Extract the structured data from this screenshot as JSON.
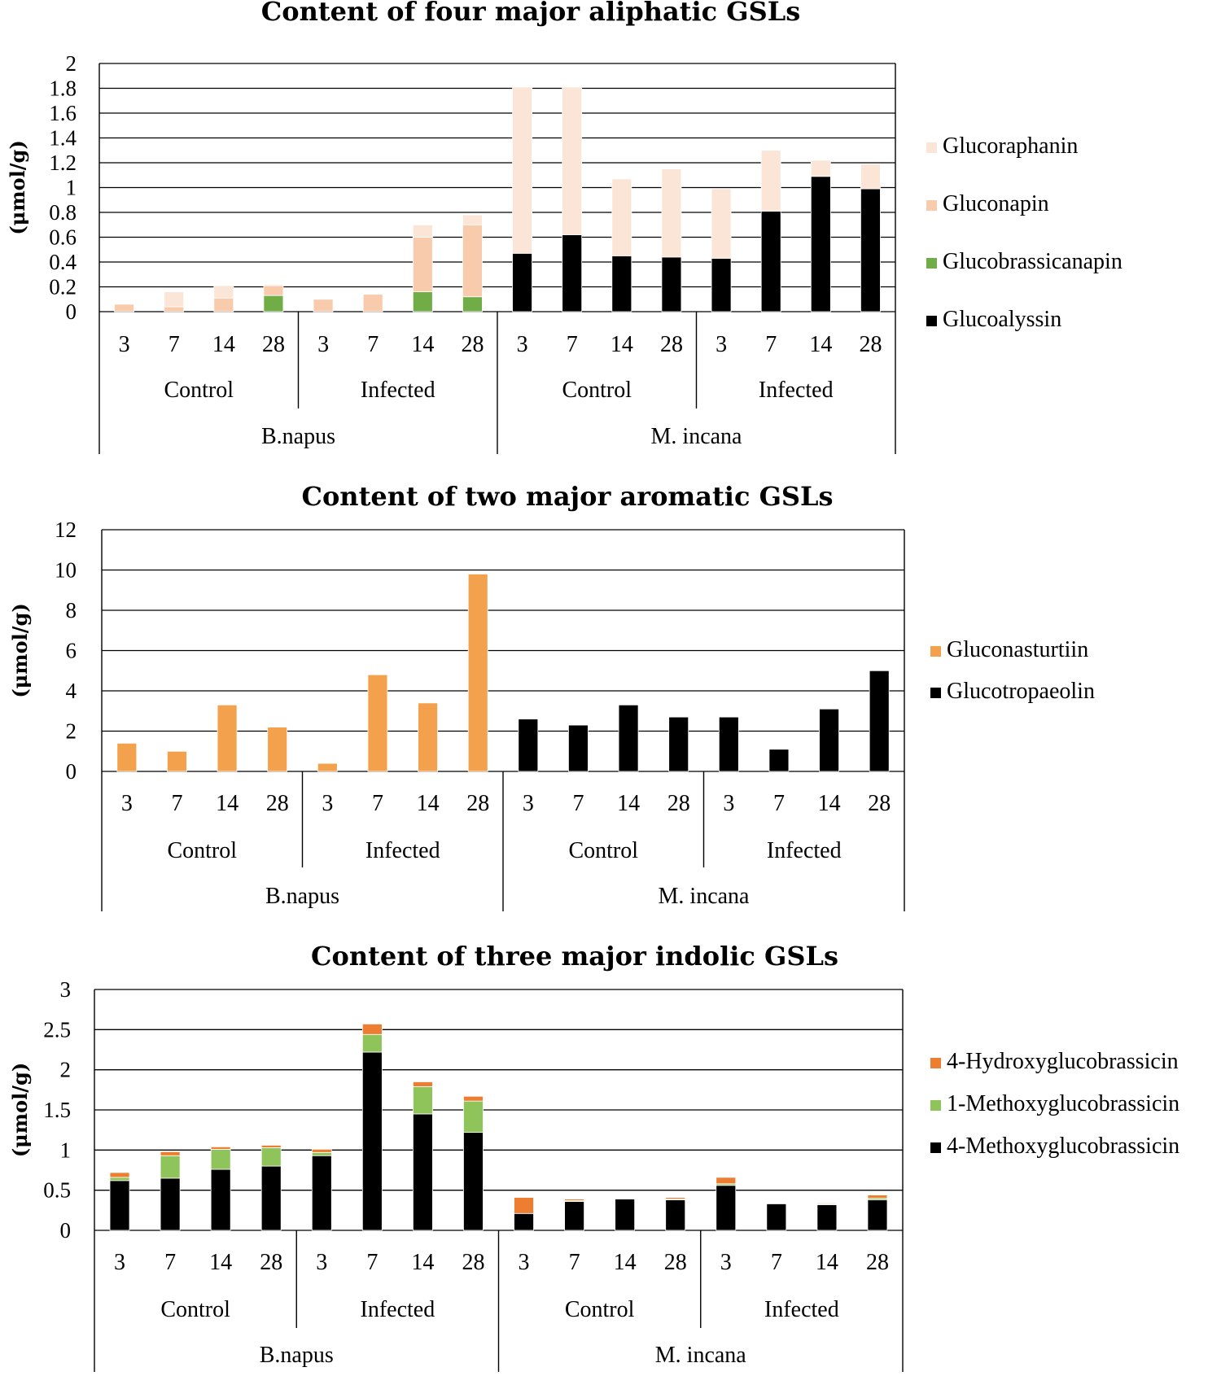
{
  "colors": {
    "Glucoraphanin": "#fbe5d6",
    "Gluconapin": "#f8cbad",
    "Glucobrassicanapin": "#70ad47",
    "Glucoalyssin": "#000000",
    "Gluconasturtiin": "#f4a14e",
    "Glucotropaeolin": "#000000",
    "4-Hydroxyglucobrassicin": "#ed7d31",
    "1-Methoxyglucobrassicin": "#8fc45a",
    "4-Methoxyglucobrassicin": "#000000",
    "grid": "#000000"
  },
  "chart_data": [
    {
      "type": "bar",
      "stacked": true,
      "title": "Content of four major aliphatic GSLs",
      "ylabel": "(μmol/g)",
      "ylim": [
        0,
        2
      ],
      "yticks": [
        "0",
        "0.2",
        "0.4",
        "0.6",
        "0.8",
        "1",
        "1.2",
        "1.4",
        "1.6",
        "1.8",
        "2"
      ],
      "ytick_values": [
        0,
        0.2,
        0.4,
        0.6,
        0.8,
        1,
        1.2,
        1.4,
        1.6,
        1.8,
        2
      ],
      "categories": [
        "3",
        "7",
        "14",
        "28",
        "3",
        "7",
        "14",
        "28",
        "3",
        "7",
        "14",
        "28",
        "3",
        "7",
        "14",
        "28"
      ],
      "treatments": [
        "Control",
        "Infected",
        "Control",
        "Infected"
      ],
      "species": [
        "B.napus",
        "M. incana"
      ],
      "legend": [
        "Glucoraphanin",
        "Gluconapin",
        "Glucobrassicanapin",
        "Glucoalyssin"
      ],
      "series": [
        {
          "name": "Glucoalyssin",
          "values": [
            0,
            0,
            0,
            0,
            0,
            0,
            0,
            0,
            0.47,
            0.62,
            0.45,
            0.44,
            0.43,
            0.81,
            1.09,
            0.99
          ]
        },
        {
          "name": "Glucobrassicanapin",
          "values": [
            0,
            0,
            0,
            0.13,
            0,
            0,
            0.16,
            0.12,
            0,
            0,
            0,
            0,
            0,
            0,
            0,
            0
          ]
        },
        {
          "name": "Gluconapin",
          "values": [
            0.06,
            0.04,
            0.11,
            0.08,
            0.1,
            0.14,
            0.44,
            0.58,
            0,
            0,
            0,
            0,
            0,
            0,
            0,
            0
          ]
        },
        {
          "name": "Glucoraphanin",
          "values": [
            0,
            0.12,
            0.1,
            0.01,
            0,
            0,
            0.1,
            0.08,
            1.34,
            1.19,
            0.62,
            0.71,
            0.56,
            0.49,
            0.13,
            0.2
          ]
        }
      ]
    },
    {
      "type": "bar",
      "stacked": true,
      "title": "Content of two major aromatic GSLs",
      "ylabel": "(μmol/g)",
      "ylim": [
        0,
        12
      ],
      "yticks": [
        "0",
        "2",
        "4",
        "6",
        "8",
        "10",
        "12"
      ],
      "ytick_values": [
        0,
        2,
        4,
        6,
        8,
        10,
        12
      ],
      "categories": [
        "3",
        "7",
        "14",
        "28",
        "3",
        "7",
        "14",
        "28",
        "3",
        "7",
        "14",
        "28",
        "3",
        "7",
        "14",
        "28"
      ],
      "treatments": [
        "Control",
        "Infected",
        "Control",
        "Infected"
      ],
      "species": [
        "B.napus",
        "M. incana"
      ],
      "legend": [
        "Gluconasturtiin",
        "Glucotropaeolin"
      ],
      "series": [
        {
          "name": "Glucotropaeolin",
          "values": [
            0,
            0,
            0,
            0,
            0,
            0,
            0,
            0,
            2.6,
            2.3,
            3.3,
            2.7,
            2.7,
            1.1,
            3.1,
            5.0
          ]
        },
        {
          "name": "Gluconasturtiin",
          "values": [
            1.4,
            1.0,
            3.3,
            2.2,
            0.4,
            4.8,
            3.4,
            9.8,
            0,
            0,
            0,
            0,
            0,
            0,
            0,
            0
          ]
        }
      ]
    },
    {
      "type": "bar",
      "stacked": true,
      "title": "Content of three major indolic GSLs",
      "ylabel": "(μmol/g)",
      "ylim": [
        0,
        3
      ],
      "yticks": [
        "0",
        "0.5",
        "1",
        "1.5",
        "2",
        "2.5",
        "3"
      ],
      "ytick_values": [
        0,
        0.5,
        1,
        1.5,
        2,
        2.5,
        3
      ],
      "categories": [
        "3",
        "7",
        "14",
        "28",
        "3",
        "7",
        "14",
        "28",
        "3",
        "7",
        "14",
        "28",
        "3",
        "7",
        "14",
        "28"
      ],
      "treatments": [
        "Control",
        "Infected",
        "Control",
        "Infected"
      ],
      "species": [
        "B.napus",
        "M. incana"
      ],
      "legend": [
        "4-Hydroxyglucobrassicin",
        "1-Methoxyglucobrassicin",
        "4-Methoxyglucobrassicin"
      ],
      "series": [
        {
          "name": "4-Methoxyglucobrassicin",
          "values": [
            0.62,
            0.65,
            0.76,
            0.8,
            0.93,
            2.22,
            1.45,
            1.22,
            0.21,
            0.36,
            0.39,
            0.38,
            0.56,
            0.33,
            0.32,
            0.38
          ]
        },
        {
          "name": "1-Methoxyglucobrassicin",
          "values": [
            0.04,
            0.28,
            0.25,
            0.23,
            0.04,
            0.22,
            0.34,
            0.39,
            0,
            0.01,
            0,
            0.01,
            0.02,
            0,
            0.01,
            0.02
          ]
        },
        {
          "name": "4-Hydroxyglucobrassicin",
          "values": [
            0.06,
            0.05,
            0.03,
            0.03,
            0.04,
            0.13,
            0.06,
            0.06,
            0.2,
            0.02,
            0,
            0.02,
            0.08,
            0,
            0.01,
            0.04
          ]
        }
      ]
    }
  ]
}
